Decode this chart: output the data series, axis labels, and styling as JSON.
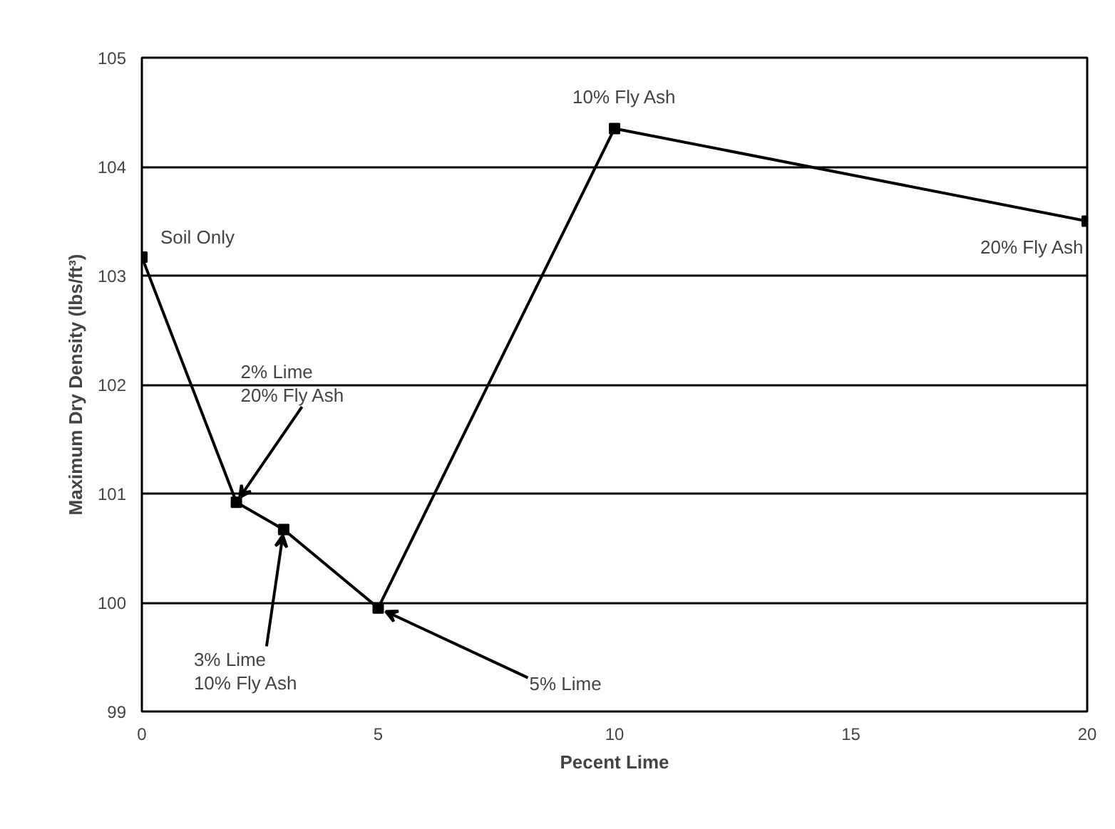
{
  "chart_data": {
    "type": "line",
    "xlabel": "Pecent Lime",
    "ylabel": "Maximum Dry Density (lbs/ft³)",
    "x": [
      0,
      2,
      3,
      5,
      10,
      20
    ],
    "series": [
      {
        "color": "#000000",
        "values": [
          103.17,
          100.92,
          100.67,
          99.95,
          104.35,
          103.5
        ]
      }
    ],
    "xlim": [
      0,
      20
    ],
    "xticks": [
      0,
      5,
      10,
      15,
      20
    ],
    "ylim": [
      99,
      105
    ],
    "yticks": [
      99,
      100,
      101,
      102,
      103,
      104,
      105
    ],
    "grid": "y",
    "marker": "square",
    "line_style": "solid",
    "annotations": [
      {
        "text": "Soil Only",
        "x": 0,
        "y": 103.17
      },
      {
        "text": "2% Lime\n20% Fly Ash",
        "x": 2,
        "y": 100.92
      },
      {
        "text": "3% Lime\n10% Fly Ash",
        "x": 3,
        "y": 100.67
      },
      {
        "text": "5% Lime",
        "x": 5,
        "y": 99.95
      },
      {
        "text": "10% Fly Ash",
        "x": 10,
        "y": 104.35
      },
      {
        "text": "20% Fly Ash",
        "x": 20,
        "y": 103.5
      }
    ]
  }
}
